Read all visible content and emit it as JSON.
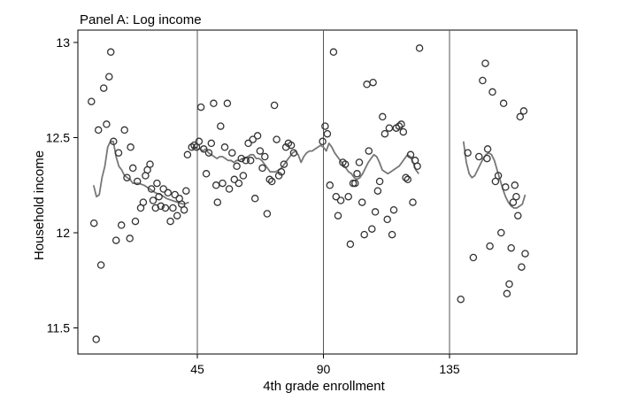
{
  "chart_data": {
    "type": "scatter",
    "title": "Panel A: Log income",
    "xlabel": "4th grade enrollment",
    "ylabel": "Household income",
    "xlim": [
      5,
      151
    ],
    "ylim": [
      11.44,
      13.02
    ],
    "xticks": [
      {
        "value": 45,
        "label": "45"
      },
      {
        "value": 90,
        "label": "90"
      },
      {
        "value": 135,
        "label": "135"
      }
    ],
    "yticks": [
      {
        "value": 11.5,
        "label": "11.5"
      },
      {
        "value": 12,
        "label": "12"
      },
      {
        "value": 12.5,
        "label": "12.5"
      },
      {
        "value": 13,
        "label": "13"
      }
    ],
    "vlines": [
      45,
      90,
      135
    ],
    "colors": {
      "markers": "#333333",
      "fit_line": "#777777",
      "frame": "#000000",
      "vlines": "#555555"
    },
    "series": [
      {
        "marker": "hollow-circle",
        "points": [
          [
            7.2,
            12.69
          ],
          [
            8.1,
            12.05
          ],
          [
            8.9,
            11.44
          ],
          [
            9.7,
            12.54
          ],
          [
            10.6,
            11.83
          ],
          [
            11.6,
            12.76
          ],
          [
            12.6,
            12.57
          ],
          [
            13.5,
            12.82
          ],
          [
            14.1,
            12.95
          ],
          [
            15.1,
            12.48
          ],
          [
            16.0,
            11.96
          ],
          [
            16.9,
            12.42
          ],
          [
            17.9,
            12.04
          ],
          [
            19.0,
            12.54
          ],
          [
            19.9,
            12.29
          ],
          [
            20.9,
            11.97
          ],
          [
            21.2,
            12.45
          ],
          [
            22.0,
            12.34
          ],
          [
            22.9,
            12.06
          ],
          [
            23.6,
            12.27
          ],
          [
            24.8,
            12.13
          ],
          [
            25.7,
            12.16
          ],
          [
            26.5,
            12.3
          ],
          [
            27.2,
            12.33
          ],
          [
            28.1,
            12.36
          ],
          [
            28.6,
            12.23
          ],
          [
            29.2,
            12.17
          ],
          [
            30.1,
            12.13
          ],
          [
            30.6,
            12.26
          ],
          [
            31.3,
            12.19
          ],
          [
            32.0,
            12.14
          ],
          [
            32.9,
            12.23
          ],
          [
            33.6,
            12.13
          ],
          [
            34.5,
            12.21
          ],
          [
            35.4,
            12.06
          ],
          [
            36.3,
            12.13
          ],
          [
            37.0,
            12.2
          ],
          [
            37.8,
            12.09
          ],
          [
            38.6,
            12.18
          ],
          [
            39.4,
            12.15
          ],
          [
            40.3,
            12.12
          ],
          [
            41.0,
            12.22
          ],
          [
            41.5,
            12.41
          ],
          [
            43.0,
            12.45
          ],
          [
            43.9,
            12.46
          ],
          [
            44.7,
            12.45
          ],
          [
            45.6,
            12.48
          ],
          [
            46.3,
            12.66
          ],
          [
            47.3,
            12.44
          ],
          [
            48.2,
            12.31
          ],
          [
            49.1,
            12.42
          ],
          [
            50.0,
            12.47
          ],
          [
            50.8,
            12.68
          ],
          [
            51.7,
            12.25
          ],
          [
            52.2,
            12.16
          ],
          [
            53.3,
            12.56
          ],
          [
            54.0,
            12.26
          ],
          [
            54.8,
            12.45
          ],
          [
            55.7,
            12.68
          ],
          [
            56.4,
            12.23
          ],
          [
            57.4,
            12.42
          ],
          [
            58.2,
            12.28
          ],
          [
            59.1,
            12.35
          ],
          [
            59.8,
            12.26
          ],
          [
            60.7,
            12.39
          ],
          [
            61.4,
            12.3
          ],
          [
            62.3,
            12.38
          ],
          [
            63.2,
            12.47
          ],
          [
            64.0,
            12.38
          ],
          [
            64.8,
            12.49
          ],
          [
            65.6,
            12.18
          ],
          [
            66.5,
            12.51
          ],
          [
            67.4,
            12.43
          ],
          [
            68.2,
            12.34
          ],
          [
            69.1,
            12.4
          ],
          [
            69.9,
            12.1
          ],
          [
            70.8,
            12.28
          ],
          [
            71.6,
            12.27
          ],
          [
            72.5,
            12.67
          ],
          [
            73.3,
            12.49
          ],
          [
            74.1,
            12.3
          ],
          [
            75.0,
            12.32
          ],
          [
            75.9,
            12.36
          ],
          [
            76.6,
            12.45
          ],
          [
            77.5,
            12.47
          ],
          [
            78.5,
            12.46
          ],
          [
            79.4,
            12.42
          ],
          [
            89.7,
            12.48
          ],
          [
            90.6,
            12.56
          ],
          [
            91.4,
            12.52
          ],
          [
            92.3,
            12.25
          ],
          [
            93.6,
            12.95
          ],
          [
            94.5,
            12.19
          ],
          [
            95.2,
            12.09
          ],
          [
            96.2,
            12.17
          ],
          [
            96.9,
            12.37
          ],
          [
            97.8,
            12.36
          ],
          [
            98.9,
            12.19
          ],
          [
            99.6,
            11.94
          ],
          [
            100.6,
            12.26
          ],
          [
            101.3,
            12.26
          ],
          [
            102.0,
            12.31
          ],
          [
            102.8,
            12.37
          ],
          [
            103.8,
            12.16
          ],
          [
            104.6,
            11.99
          ],
          [
            105.5,
            12.78
          ],
          [
            106.2,
            12.43
          ],
          [
            107.3,
            12.02
          ],
          [
            107.7,
            12.79
          ],
          [
            108.5,
            12.11
          ],
          [
            109.4,
            12.22
          ],
          [
            110.1,
            12.27
          ],
          [
            111.1,
            12.61
          ],
          [
            111.9,
            12.52
          ],
          [
            112.8,
            12.07
          ],
          [
            113.5,
            12.55
          ],
          [
            114.5,
            11.99
          ],
          [
            115.1,
            12.12
          ],
          [
            116.0,
            12.55
          ],
          [
            117.0,
            12.56
          ],
          [
            117.8,
            12.57
          ],
          [
            118.5,
            12.53
          ],
          [
            119.4,
            12.29
          ],
          [
            120.1,
            12.28
          ],
          [
            121.1,
            12.41
          ],
          [
            121.9,
            12.16
          ],
          [
            122.7,
            12.38
          ],
          [
            123.5,
            12.35
          ],
          [
            124.3,
            12.97
          ],
          [
            139.0,
            11.65
          ],
          [
            141.5,
            12.42
          ],
          [
            143.5,
            11.87
          ],
          [
            145.5,
            12.4
          ],
          [
            146.8,
            12.8
          ],
          [
            147.8,
            12.89
          ],
          [
            148.4,
            12.39
          ],
          [
            148.6,
            12.44
          ],
          [
            149.4,
            11.93
          ],
          [
            150.3,
            12.74
          ],
          [
            151.4,
            12.27
          ],
          [
            152.4,
            12.3
          ],
          [
            153.4,
            12.0
          ],
          [
            154.3,
            12.68
          ],
          [
            155.0,
            12.24
          ],
          [
            155.5,
            11.68
          ],
          [
            156.3,
            11.73
          ],
          [
            157.0,
            11.92
          ],
          [
            157.7,
            12.16
          ],
          [
            158.3,
            12.25
          ],
          [
            158.8,
            12.19
          ],
          [
            159.4,
            12.09
          ],
          [
            160.2,
            12.61
          ],
          [
            160.7,
            11.82
          ],
          [
            161.5,
            12.64
          ],
          [
            162.0,
            11.89
          ]
        ]
      },
      {
        "marker": "line",
        "segments": [
          [
            [
              8.0,
              12.25
            ],
            [
              9.0,
              12.19
            ],
            [
              10.0,
              12.2
            ],
            [
              11.0,
              12.29
            ],
            [
              12.0,
              12.35
            ],
            [
              13.0,
              12.45
            ],
            [
              14.0,
              12.48
            ],
            [
              15.0,
              12.48
            ],
            [
              16.0,
              12.4
            ],
            [
              17.0,
              12.35
            ],
            [
              18.0,
              12.33
            ],
            [
              19.0,
              12.3
            ],
            [
              20.0,
              12.29
            ],
            [
              21.0,
              12.28
            ],
            [
              22.0,
              12.26
            ],
            [
              24.0,
              12.26
            ],
            [
              26.0,
              12.25
            ],
            [
              28.0,
              12.23
            ],
            [
              30.0,
              12.21
            ],
            [
              32.0,
              12.2
            ],
            [
              34.0,
              12.18
            ],
            [
              36.0,
              12.17
            ],
            [
              38.0,
              12.16
            ],
            [
              40.0,
              12.15
            ],
            [
              42.0,
              12.16
            ]
          ],
          [
            [
              43.0,
              12.44
            ],
            [
              44.0,
              12.45
            ],
            [
              45.0,
              12.44
            ],
            [
              46.0,
              12.44
            ],
            [
              47.0,
              12.43
            ],
            [
              48.0,
              12.44
            ],
            [
              49.0,
              12.42
            ],
            [
              50.0,
              12.41
            ],
            [
              51.0,
              12.4
            ],
            [
              52.0,
              12.39
            ],
            [
              53.0,
              12.4
            ],
            [
              54.0,
              12.4
            ],
            [
              55.0,
              12.39
            ],
            [
              56.0,
              12.38
            ],
            [
              57.0,
              12.38
            ],
            [
              58.0,
              12.37
            ],
            [
              59.0,
              12.38
            ],
            [
              60.0,
              12.38
            ],
            [
              61.0,
              12.39
            ],
            [
              62.0,
              12.39
            ],
            [
              63.0,
              12.4
            ],
            [
              64.0,
              12.41
            ],
            [
              65.0,
              12.41
            ],
            [
              66.0,
              12.39
            ],
            [
              67.0,
              12.39
            ],
            [
              68.0,
              12.38
            ],
            [
              69.0,
              12.36
            ],
            [
              70.0,
              12.34
            ],
            [
              71.0,
              12.32
            ],
            [
              72.0,
              12.32
            ],
            [
              73.0,
              12.32
            ],
            [
              74.0,
              12.33
            ],
            [
              75.0,
              12.34
            ],
            [
              76.0,
              12.36
            ],
            [
              77.0,
              12.38
            ],
            [
              78.0,
              12.4
            ],
            [
              79.0,
              12.42
            ],
            [
              80.0,
              12.43
            ],
            [
              81.0,
              12.41
            ],
            [
              82.0,
              12.37
            ],
            [
              83.0,
              12.4
            ],
            [
              84.0,
              12.42
            ],
            [
              85.0,
              12.43
            ],
            [
              86.0,
              12.43
            ],
            [
              87.0,
              12.44
            ],
            [
              88.0,
              12.45
            ],
            [
              89.0,
              12.46
            ],
            [
              90.0,
              12.45
            ],
            [
              91.0,
              12.43
            ],
            [
              92.0,
              12.47
            ],
            [
              93.0,
              12.45
            ],
            [
              94.0,
              12.42
            ],
            [
              95.0,
              12.4
            ],
            [
              96.0,
              12.38
            ],
            [
              97.0,
              12.36
            ],
            [
              98.0,
              12.34
            ],
            [
              99.0,
              12.32
            ],
            [
              100.0,
              12.31
            ],
            [
              101.0,
              12.29
            ],
            [
              102.0,
              12.28
            ],
            [
              103.0,
              12.29
            ],
            [
              104.0,
              12.31
            ],
            [
              105.0,
              12.34
            ],
            [
              106.0,
              12.37
            ],
            [
              107.0,
              12.39
            ],
            [
              108.0,
              12.41
            ],
            [
              109.0,
              12.4
            ],
            [
              110.0,
              12.37
            ],
            [
              111.0,
              12.33
            ],
            [
              112.0,
              12.32
            ],
            [
              113.0,
              12.31
            ],
            [
              114.0,
              12.32
            ],
            [
              115.0,
              12.33
            ],
            [
              116.0,
              12.34
            ],
            [
              117.0,
              12.35
            ],
            [
              118.0,
              12.37
            ],
            [
              119.0,
              12.39
            ],
            [
              120.0,
              12.41
            ],
            [
              121.0,
              12.4
            ],
            [
              122.0,
              12.37
            ],
            [
              123.0,
              12.33
            ],
            [
              124.0,
              12.31
            ]
          ],
          [
            [
              140.0,
              12.48
            ],
            [
              141.0,
              12.37
            ],
            [
              142.0,
              12.31
            ],
            [
              143.0,
              12.29
            ],
            [
              144.0,
              12.3
            ],
            [
              145.0,
              12.33
            ],
            [
              146.0,
              12.36
            ],
            [
              147.0,
              12.39
            ],
            [
              148.0,
              12.41
            ],
            [
              149.0,
              12.42
            ],
            [
              150.0,
              12.41
            ],
            [
              151.0,
              12.38
            ],
            [
              152.0,
              12.33
            ],
            [
              153.0,
              12.28
            ],
            [
              154.0,
              12.23
            ],
            [
              155.0,
              12.19
            ],
            [
              156.0,
              12.16
            ],
            [
              157.0,
              12.14
            ],
            [
              158.0,
              12.13
            ],
            [
              159.0,
              12.13
            ],
            [
              160.0,
              12.14
            ],
            [
              161.0,
              12.15
            ],
            [
              162.0,
              12.2
            ]
          ]
        ]
      }
    ]
  }
}
